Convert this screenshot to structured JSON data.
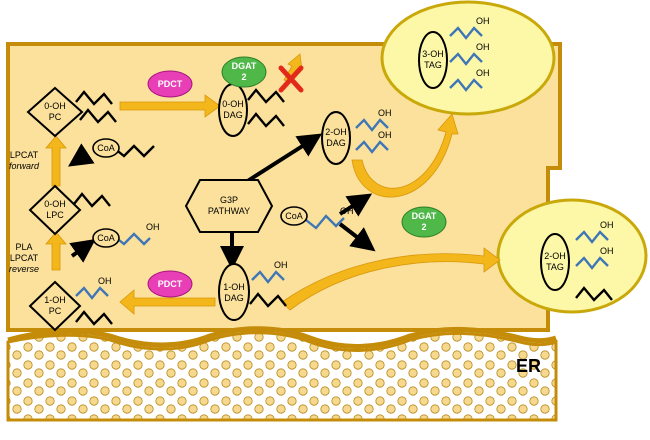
{
  "colors": {
    "cell_fill": "#fbe19b",
    "cell_border": "#c48c09",
    "vesicle_fill": "#fdf7a8",
    "vesicle_border": "#c9a80a",
    "arrow_orange": "#f3b61b",
    "pdct": "#e83fb6",
    "dgat": "#4fb848",
    "oh_chain": "#3e76b7",
    "er_bead": "#f7d88f"
  },
  "molecules": {
    "pc0": [
      "0-OH",
      "PC"
    ],
    "lpc0": [
      "0-OH",
      "LPC"
    ],
    "pc1": [
      "1-OH",
      "PC"
    ],
    "dag0": [
      "0-OH",
      "DAG"
    ],
    "dag1": [
      "1-OH",
      "DAG"
    ],
    "dag2": [
      "2-OH",
      "DAG"
    ],
    "tag3": [
      "3-OH",
      "TAG"
    ],
    "tag2": [
      "2-OH",
      "TAG"
    ]
  },
  "enzymes": {
    "pdct_top": "PDCT",
    "pdct_bottom": "PDCT",
    "dgat_top": [
      "DGAT",
      "2"
    ],
    "dgat_bottom": [
      "DGAT",
      "2"
    ]
  },
  "labels": {
    "coa": "CoA",
    "oh": "OH",
    "g3p": [
      "G3P",
      "PATHWAY"
    ],
    "lpcat_forward": [
      "LPCAT",
      "forward"
    ],
    "pla_lpcat_reverse": [
      "PLA",
      "LPCAT",
      "reverse"
    ],
    "er": "ER"
  }
}
